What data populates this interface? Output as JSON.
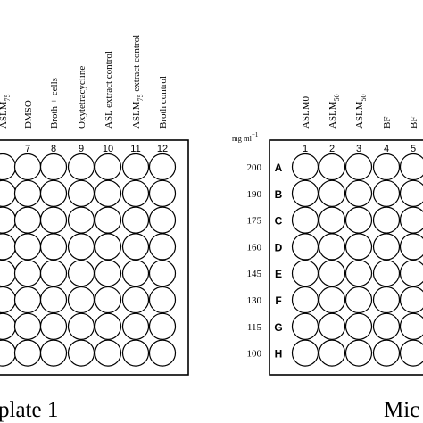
{
  "left_plate": {
    "caption": "plate 1",
    "column_numbers": [
      "",
      "7",
      "8",
      "9",
      "10",
      "11",
      "12"
    ],
    "column_labels": [
      {
        "text": "ASLM",
        "sub": "75"
      },
      {
        "text": "DMSO",
        "sub": ""
      },
      {
        "text": "Broth + cells",
        "sub": ""
      },
      {
        "text": "Oxytetracycline",
        "sub": ""
      },
      {
        "text": "ASL extract control",
        "sub": ""
      },
      {
        "text": "ASLM",
        "sub": "75",
        "suffix": " extract control"
      },
      {
        "text": "Broth control",
        "sub": ""
      }
    ],
    "rows": 8
  },
  "right_plate": {
    "caption": "Mic",
    "unit_label": "mg ml",
    "unit_exponent": "−1",
    "column_numbers": [
      "1",
      "2",
      "3",
      "4",
      "5"
    ],
    "column_labels": [
      {
        "text": "ASLM0",
        "sub": ""
      },
      {
        "text": "ASLM",
        "sub": "50"
      },
      {
        "text": "ASLM",
        "sub": "50"
      },
      {
        "text": "BF",
        "sub": ""
      },
      {
        "text": "BF",
        "sub": ""
      }
    ],
    "row_letters": [
      "A",
      "B",
      "C",
      "D",
      "E",
      "F",
      "G",
      "H"
    ],
    "concentrations": [
      "200",
      "190",
      "175",
      "160",
      "145",
      "130",
      "115",
      "100"
    ]
  }
}
